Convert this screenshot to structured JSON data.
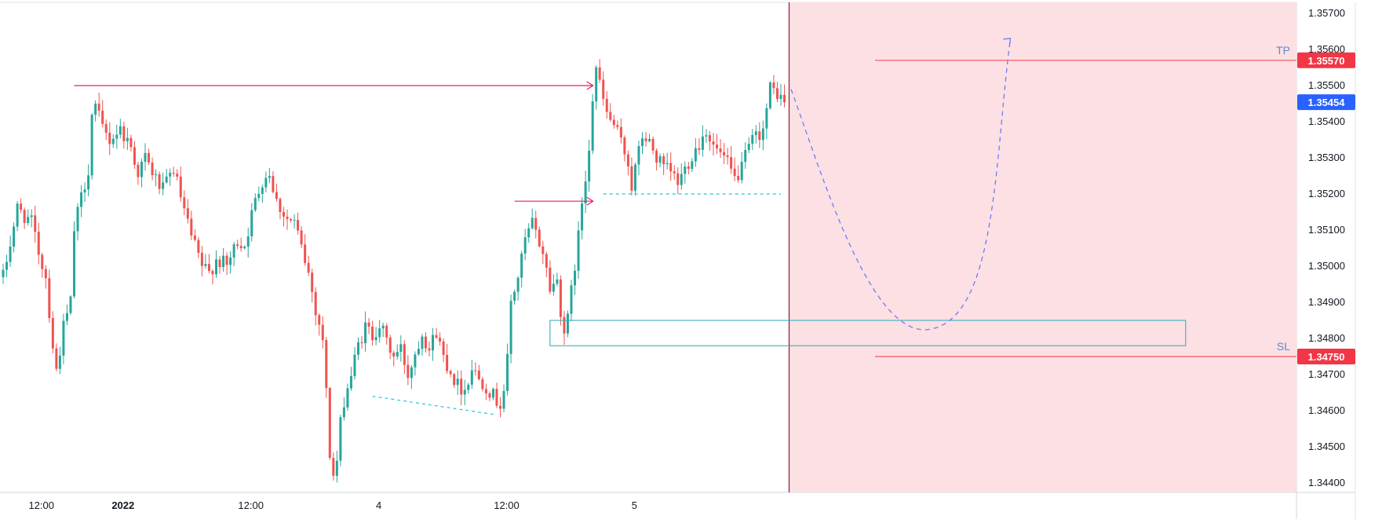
{
  "chart_data": {
    "type": "candlestick",
    "price_axis": {
      "ticks": [
        "1.35700",
        "1.35600",
        "1.35500",
        "1.35400",
        "1.35300",
        "1.35200",
        "1.35100",
        "1.35000",
        "1.34900",
        "1.34800",
        "1.34700",
        "1.34600",
        "1.34500",
        "1.34400"
      ],
      "range": [
        1.3437,
        1.3576
      ]
    },
    "time_axis": {
      "ticks": [
        {
          "label": "12:00",
          "bar": 9,
          "bold": false
        },
        {
          "label": "2022",
          "bar": 32,
          "bold": true
        },
        {
          "label": "12:00",
          "bar": 68,
          "bold": false
        },
        {
          "label": "4",
          "bar": 104,
          "bold": false
        },
        {
          "label": "12:00",
          "bar": 140,
          "bold": false
        },
        {
          "label": "5",
          "bar": 176,
          "bold": false
        }
      ]
    },
    "bars_per_hour": 1,
    "bar_count": 221,
    "future_bars": 147,
    "path": [
      [
        0,
        1.3497
      ],
      [
        4,
        1.3516
      ],
      [
        8,
        1.3512
      ],
      [
        10,
        1.3504
      ],
      [
        12,
        1.3497
      ],
      [
        14,
        1.3478
      ],
      [
        15,
        1.3471
      ],
      [
        17,
        1.3483
      ],
      [
        19,
        1.349
      ],
      [
        20,
        1.351
      ],
      [
        22,
        1.3519
      ],
      [
        24,
        1.3527
      ],
      [
        25,
        1.3542
      ],
      [
        26,
        1.3544
      ],
      [
        28,
        1.3538
      ],
      [
        30,
        1.3535
      ],
      [
        33,
        1.3538
      ],
      [
        36,
        1.3533
      ],
      [
        38,
        1.3526
      ],
      [
        40,
        1.353
      ],
      [
        43,
        1.3524
      ],
      [
        45,
        1.3521
      ],
      [
        48,
        1.3527
      ],
      [
        51,
        1.3515
      ],
      [
        53,
        1.3508
      ],
      [
        56,
        1.35
      ],
      [
        58,
        1.3498
      ],
      [
        60,
        1.3502
      ],
      [
        63,
        1.35
      ],
      [
        66,
        1.3507
      ],
      [
        68,
        1.3506
      ],
      [
        71,
        1.3518
      ],
      [
        73,
        1.3524
      ],
      [
        75,
        1.3526
      ],
      [
        77,
        1.3518
      ],
      [
        80,
        1.3513
      ],
      [
        82,
        1.3512
      ],
      [
        84,
        1.3505
      ],
      [
        86,
        1.3498
      ],
      [
        88,
        1.3488
      ],
      [
        90,
        1.348
      ],
      [
        91,
        1.3465
      ],
      [
        92,
        1.3448
      ],
      [
        93,
        1.3442
      ],
      [
        94,
        1.3446
      ],
      [
        95,
        1.3456
      ],
      [
        96,
        1.3463
      ],
      [
        98,
        1.347
      ],
      [
        100,
        1.3478
      ],
      [
        102,
        1.3483
      ],
      [
        104,
        1.3481
      ],
      [
        106,
        1.3484
      ],
      [
        108,
        1.3479
      ],
      [
        110,
        1.3475
      ],
      [
        112,
        1.3477
      ],
      [
        114,
        1.347
      ],
      [
        116,
        1.3476
      ],
      [
        118,
        1.3482
      ],
      [
        120,
        1.3477
      ],
      [
        122,
        1.3482
      ],
      [
        124,
        1.3475
      ],
      [
        126,
        1.3471
      ],
      [
        128,
        1.3467
      ],
      [
        130,
        1.3466
      ],
      [
        132,
        1.3472
      ],
      [
        134,
        1.3469
      ],
      [
        136,
        1.3467
      ],
      [
        138,
        1.3464
      ],
      [
        140,
        1.3462
      ],
      [
        141,
        1.3466
      ],
      [
        142,
        1.3474
      ],
      [
        143,
        1.349
      ],
      [
        145,
        1.3497
      ],
      [
        147,
        1.3507
      ],
      [
        149,
        1.3512
      ],
      [
        150,
        1.3509
      ],
      [
        152,
        1.3504
      ],
      [
        154,
        1.3494
      ],
      [
        156,
        1.3496
      ],
      [
        157,
        1.3488
      ],
      [
        158,
        1.3482
      ],
      [
        159,
        1.3485
      ],
      [
        160,
        1.3493
      ],
      [
        162,
        1.3508
      ],
      [
        163,
        1.3518
      ],
      [
        164,
        1.3525
      ],
      [
        165,
        1.3534
      ],
      [
        166,
        1.3547
      ],
      [
        167,
        1.3555
      ],
      [
        168,
        1.355
      ],
      [
        170,
        1.3542
      ],
      [
        172,
        1.3539
      ],
      [
        174,
        1.3534
      ],
      [
        176,
        1.3529
      ],
      [
        177,
        1.3522
      ],
      [
        178,
        1.3527
      ],
      [
        180,
        1.3536
      ],
      [
        182,
        1.3534
      ],
      [
        184,
        1.353
      ],
      [
        186,
        1.3527
      ],
      [
        188,
        1.3526
      ],
      [
        190,
        1.3523
      ],
      [
        192,
        1.3527
      ],
      [
        194,
        1.3531
      ],
      [
        196,
        1.3534
      ],
      [
        198,
        1.3538
      ],
      [
        200,
        1.3533
      ],
      [
        202,
        1.3531
      ],
      [
        204,
        1.3528
      ],
      [
        206,
        1.3524
      ],
      [
        208,
        1.3527
      ],
      [
        210,
        1.3533
      ],
      [
        212,
        1.3536
      ],
      [
        214,
        1.3538
      ],
      [
        216,
        1.3549
      ],
      [
        218,
        1.3548
      ],
      [
        220,
        1.3545
      ]
    ],
    "last_price": "1.35454",
    "current_bar": 220,
    "zones": {
      "future_zone_color": "#fde0e3"
    },
    "levels": [
      {
        "name": "TP",
        "price": 1.3557,
        "label": "1.35570",
        "badge_color": "#f23645",
        "line_color": "#f7525f",
        "x_start_bar": 240
      },
      {
        "name": "SL",
        "price": 1.3475,
        "label": "1.34750",
        "badge_color": "#f23645",
        "line_color": "#f7525f",
        "x_start_bar": 240
      }
    ],
    "arrows": [
      {
        "from_bar": 20,
        "to_bar": 167,
        "price": 1.355,
        "color": "#e91e63"
      },
      {
        "from_bar": 144,
        "to_bar": 167,
        "price": 1.3518,
        "color": "#e91e63"
      }
    ],
    "dashed_lines": [
      {
        "from_bar": 169,
        "from_price": 1.352,
        "to_bar": 219,
        "to_price": 1.352,
        "color": "#26c6da"
      },
      {
        "from_bar": 104,
        "from_price": 1.3464,
        "to_bar": 138,
        "to_price": 1.3459,
        "color": "#26c6da"
      }
    ],
    "rectangle": {
      "from_bar": 154,
      "to_bar": 333,
      "top": 1.3485,
      "bottom": 1.3478,
      "color": "#26a9b8"
    },
    "projection": {
      "color": "#6b7cf6",
      "points": [
        [
          221,
          1.3549
        ],
        [
          260,
          1.3483
        ],
        [
          281,
          1.3513
        ],
        [
          281,
          1.3562
        ]
      ]
    },
    "colors": {
      "up": "#26a69a",
      "down": "#ef5350",
      "current_price_badge": "#2962ff",
      "vertical_line": "#8b1a2a",
      "level_label": "#5b8bd0",
      "grid": "#e0e3eb"
    }
  }
}
